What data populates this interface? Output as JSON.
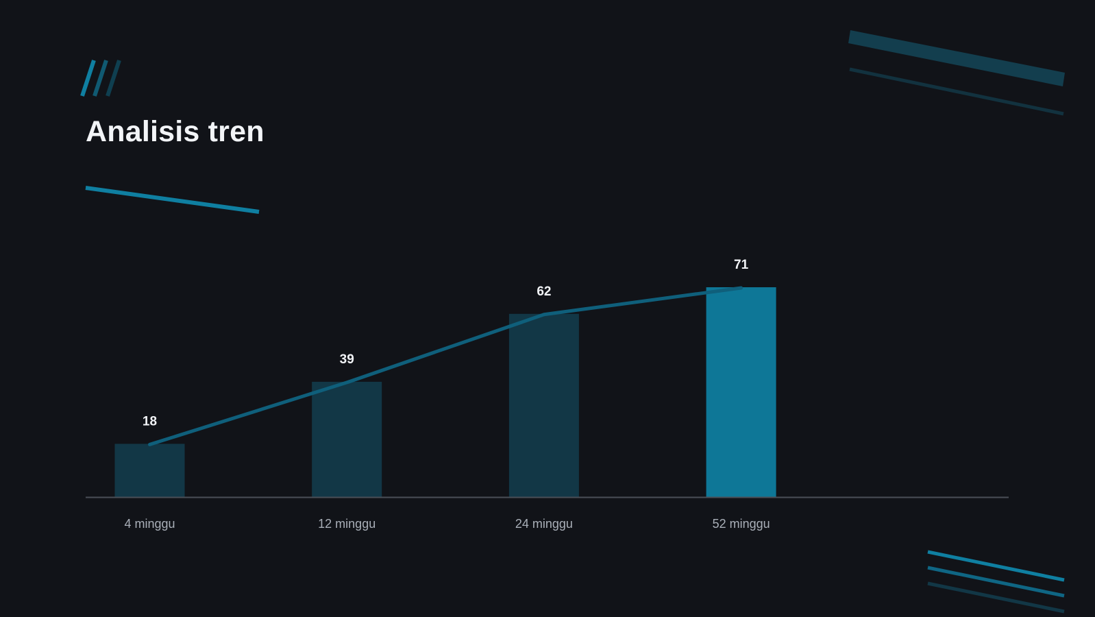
{
  "slide": {
    "title": "Analisis tren"
  },
  "colors": {
    "background": "#111318",
    "bar": "#123746",
    "bar_highlight": "#0e7797",
    "line": "#0f5f7b",
    "accent": "#0f7fa1",
    "axis": "#4a4f57",
    "text": "#f2f4f7",
    "tick_text": "#a9afb8"
  },
  "chart_data": {
    "type": "bar",
    "categories": [
      "4 minggu",
      "12 minggu",
      "24 minggu",
      "52 minggu"
    ],
    "values": [
      18,
      39,
      62,
      71
    ],
    "value_labels": [
      "18",
      "39",
      "62",
      "71"
    ],
    "highlight_index": 3,
    "overlay": "line",
    "ylim": [
      0,
      71
    ],
    "grid": false,
    "legend": "none"
  }
}
